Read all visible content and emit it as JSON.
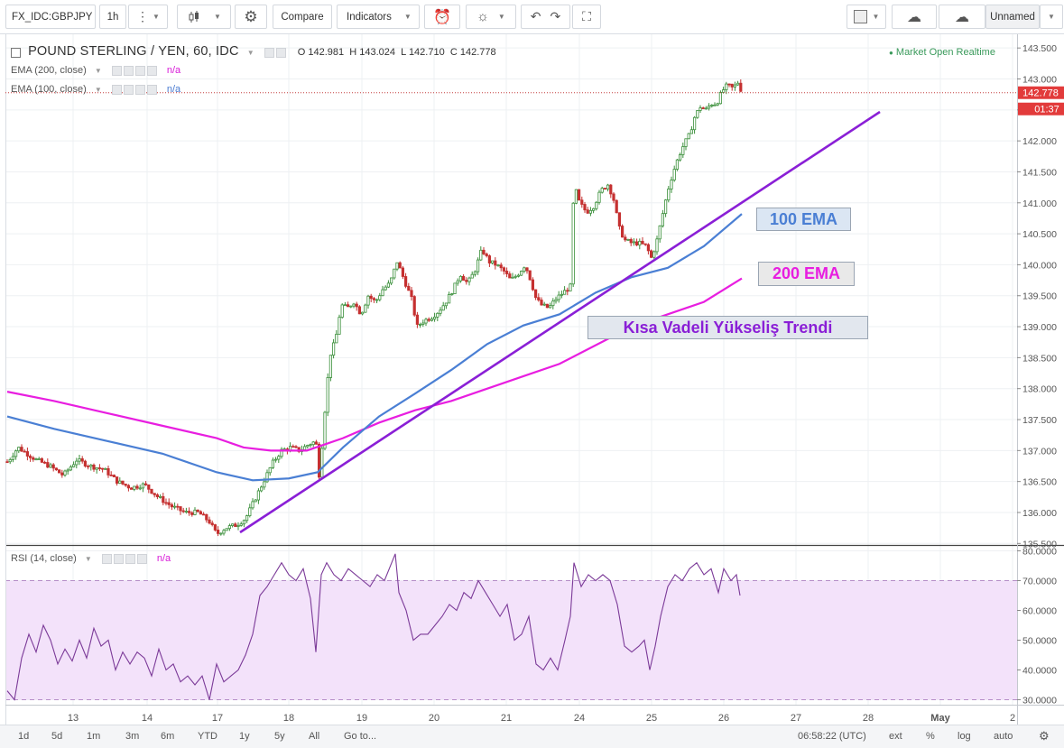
{
  "toolbar": {
    "symbol": "FX_IDC:GBPJPY",
    "interval": "1h",
    "compare_label": "Compare",
    "indicators_label": "Indicators",
    "layout_name": "Unnamed",
    "icons": [
      "more-icon",
      "candles-icon",
      "settings-icon",
      "alert-icon",
      "bulb-icon",
      "undo-icon",
      "redo-icon",
      "fullscreen-icon",
      "square-icon",
      "cloud-download-icon",
      "cloud-upload-icon"
    ]
  },
  "legend": {
    "title": "POUND STERLING / YEN, 60, IDC",
    "ohlc": {
      "o_label": "O",
      "o": "142.981",
      "h_label": "H",
      "h": "143.024",
      "l_label": "L",
      "l": "142.710",
      "c_label": "C",
      "c": "142.778"
    },
    "ema200": "EMA (200, close)",
    "ema100": "EMA (100, close)",
    "na": "n/a",
    "market_status": "Market Open Realtime"
  },
  "price_badges": {
    "last": "142.778",
    "countdown": "01:37"
  },
  "annotations": {
    "ema100": "100 EMA",
    "ema200": "200 EMA",
    "trend": "Kısa Vadeli Yükseliş Trendi"
  },
  "colors": {
    "ema100": "#4a7fd4",
    "ema200": "#e81ee0",
    "trend": "#8a1fd6",
    "up": "#3a8f3a",
    "down": "#c53030",
    "rsi": "#7b3a98",
    "rsi_band": "#f3e2fa",
    "badge": "#e23b3b"
  },
  "rsi": {
    "label": "RSI (14, close)",
    "na": "n/a"
  },
  "bottom": {
    "ranges": [
      "1d",
      "5d",
      "1m",
      "3m",
      "6m",
      "YTD",
      "1y",
      "5y",
      "All"
    ],
    "goto": "Go to...",
    "time": "06:58:22 (UTC)",
    "options": [
      "ext",
      "%",
      "log",
      "auto"
    ]
  },
  "chart_data": [
    {
      "type": "candlestick",
      "x_ticks": [
        "13",
        "14",
        "17",
        "18",
        "19",
        "20",
        "21",
        "24",
        "25",
        "26",
        "27",
        "28",
        "May",
        "2"
      ],
      "y_ticks": [
        "135.500",
        "136.000",
        "136.500",
        "137.000",
        "137.500",
        "138.000",
        "138.500",
        "139.000",
        "139.500",
        "140.000",
        "140.500",
        "141.000",
        "141.500",
        "142.000",
        "142.500",
        "143.000",
        "143.500"
      ],
      "ylim": [
        135.4,
        143.6
      ],
      "price_path": [
        [
          0,
          136.7
        ],
        [
          10,
          136.85
        ],
        [
          20,
          137.05
        ],
        [
          30,
          136.95
        ],
        [
          40,
          136.85
        ],
        [
          55,
          136.75
        ],
        [
          70,
          136.6
        ],
        [
          85,
          136.85
        ],
        [
          100,
          136.75
        ],
        [
          115,
          136.7
        ],
        [
          130,
          136.5
        ],
        [
          145,
          136.4
        ],
        [
          160,
          136.45
        ],
        [
          175,
          136.25
        ],
        [
          190,
          136.1
        ],
        [
          205,
          136.0
        ],
        [
          220,
          136.0
        ],
        [
          232,
          135.85
        ],
        [
          240,
          135.65
        ],
        [
          250,
          135.75
        ],
        [
          262,
          135.8
        ],
        [
          272,
          135.9
        ],
        [
          282,
          136.2
        ],
        [
          292,
          136.5
        ],
        [
          302,
          136.8
        ],
        [
          312,
          137.0
        ],
        [
          322,
          137.05
        ],
        [
          332,
          137.0
        ],
        [
          342,
          137.1
        ],
        [
          350,
          137.15
        ],
        [
          354,
          136.55
        ],
        [
          358,
          137.3
        ],
        [
          362,
          138.0
        ],
        [
          366,
          138.55
        ],
        [
          372,
          138.8
        ],
        [
          378,
          139.35
        ],
        [
          385,
          139.3
        ],
        [
          392,
          139.4
        ],
        [
          400,
          139.2
        ],
        [
          408,
          139.5
        ],
        [
          416,
          139.4
        ],
        [
          424,
          139.6
        ],
        [
          432,
          139.7
        ],
        [
          440,
          140.05
        ],
        [
          448,
          139.75
        ],
        [
          456,
          139.45
        ],
        [
          462,
          139.0
        ],
        [
          470,
          139.1
        ],
        [
          478,
          139.15
        ],
        [
          486,
          139.25
        ],
        [
          494,
          139.4
        ],
        [
          502,
          139.6
        ],
        [
          510,
          139.85
        ],
        [
          518,
          139.7
        ],
        [
          526,
          139.9
        ],
        [
          534,
          140.25
        ],
        [
          542,
          140.05
        ],
        [
          550,
          140.0
        ],
        [
          558,
          139.9
        ],
        [
          566,
          139.75
        ],
        [
          574,
          139.85
        ],
        [
          582,
          140.0
        ],
        [
          588,
          139.75
        ],
        [
          594,
          139.45
        ],
        [
          600,
          139.35
        ],
        [
          608,
          139.3
        ],
        [
          616,
          139.45
        ],
        [
          624,
          139.55
        ],
        [
          632,
          139.65
        ],
        [
          636,
          141.3
        ],
        [
          642,
          141.0
        ],
        [
          650,
          140.85
        ],
        [
          658,
          140.95
        ],
        [
          666,
          141.2
        ],
        [
          674,
          141.3
        ],
        [
          680,
          141.05
        ],
        [
          686,
          140.6
        ],
        [
          692,
          140.4
        ],
        [
          700,
          140.35
        ],
        [
          708,
          140.35
        ],
        [
          716,
          140.3
        ],
        [
          722,
          140.1
        ],
        [
          728,
          140.4
        ],
        [
          734,
          140.8
        ],
        [
          740,
          141.2
        ],
        [
          746,
          141.5
        ],
        [
          752,
          141.75
        ],
        [
          758,
          141.95
        ],
        [
          764,
          142.1
        ],
        [
          770,
          142.4
        ],
        [
          776,
          142.55
        ],
        [
          782,
          142.5
        ],
        [
          788,
          142.6
        ],
        [
          794,
          142.6
        ],
        [
          800,
          142.8
        ],
        [
          806,
          142.9
        ],
        [
          812,
          142.85
        ],
        [
          818,
          142.95
        ],
        [
          822,
          142.78
        ]
      ],
      "series": [
        {
          "name": "EMA (200, close)",
          "points": [
            [
              8,
              137.95
            ],
            [
              60,
              137.8
            ],
            [
              120,
              137.6
            ],
            [
              180,
              137.4
            ],
            [
              240,
              137.2
            ],
            [
              270,
              137.05
            ],
            [
              300,
              137.0
            ],
            [
              340,
              137.0
            ],
            [
              380,
              137.2
            ],
            [
              420,
              137.45
            ],
            [
              460,
              137.65
            ],
            [
              500,
              137.8
            ],
            [
              540,
              138.0
            ],
            [
              580,
              138.2
            ],
            [
              620,
              138.4
            ],
            [
              660,
              138.7
            ],
            [
              700,
              139.0
            ],
            [
              740,
              139.2
            ],
            [
              780,
              139.4
            ],
            [
              822,
              139.78
            ]
          ]
        },
        {
          "name": "EMA (100, close)",
          "points": [
            [
              8,
              137.55
            ],
            [
              60,
              137.35
            ],
            [
              120,
              137.15
            ],
            [
              180,
              136.95
            ],
            [
              240,
              136.65
            ],
            [
              280,
              136.52
            ],
            [
              320,
              136.55
            ],
            [
              352,
              136.65
            ],
            [
              380,
              137.05
            ],
            [
              420,
              137.55
            ],
            [
              460,
              137.92
            ],
            [
              500,
              138.3
            ],
            [
              540,
              138.72
            ],
            [
              580,
              139.02
            ],
            [
              620,
              139.2
            ],
            [
              660,
              139.55
            ],
            [
              700,
              139.8
            ],
            [
              740,
              139.95
            ],
            [
              780,
              140.3
            ],
            [
              822,
              140.82
            ]
          ]
        }
      ]
    },
    {
      "type": "line",
      "ylim": [
        28,
        81
      ],
      "y_ticks": [
        "30.0000",
        "40.0000",
        "50.0000",
        "60.0000",
        "70.0000",
        "80.0000"
      ],
      "band": [
        30,
        70
      ],
      "series": [
        {
          "name": "RSI (14, close)",
          "points": [
            [
              8,
              33
            ],
            [
              16,
              30
            ],
            [
              24,
              44
            ],
            [
              32,
              52
            ],
            [
              40,
              46
            ],
            [
              48,
              55
            ],
            [
              56,
              50
            ],
            [
              64,
              42
            ],
            [
              72,
              47
            ],
            [
              80,
              43
            ],
            [
              88,
              50
            ],
            [
              96,
              44
            ],
            [
              104,
              54
            ],
            [
              112,
              48
            ],
            [
              120,
              50
            ],
            [
              128,
              40
            ],
            [
              136,
              46
            ],
            [
              144,
              42
            ],
            [
              152,
              46
            ],
            [
              160,
              44
            ],
            [
              168,
              38
            ],
            [
              176,
              47
            ],
            [
              184,
              40
            ],
            [
              192,
              42
            ],
            [
              200,
              36
            ],
            [
              208,
              38
            ],
            [
              216,
              35
            ],
            [
              224,
              38
            ],
            [
              232,
              30
            ],
            [
              240,
              42
            ],
            [
              248,
              36
            ],
            [
              256,
              38
            ],
            [
              264,
              40
            ],
            [
              272,
              45
            ],
            [
              280,
              52
            ],
            [
              288,
              65
            ],
            [
              296,
              68
            ],
            [
              304,
              72
            ],
            [
              312,
              76
            ],
            [
              320,
              72
            ],
            [
              328,
              70
            ],
            [
              336,
              74
            ],
            [
              344,
              64
            ],
            [
              350,
              46
            ],
            [
              356,
              72
            ],
            [
              362,
              76
            ],
            [
              370,
              72
            ],
            [
              378,
              70
            ],
            [
              386,
              74
            ],
            [
              394,
              72
            ],
            [
              402,
              70
            ],
            [
              410,
              68
            ],
            [
              418,
              72
            ],
            [
              426,
              70
            ],
            [
              434,
              76
            ],
            [
              438,
              79
            ],
            [
              442,
              66
            ],
            [
              450,
              60
            ],
            [
              458,
              50
            ],
            [
              466,
              52
            ],
            [
              474,
              52
            ],
            [
              482,
              55
            ],
            [
              490,
              58
            ],
            [
              498,
              62
            ],
            [
              506,
              60
            ],
            [
              514,
              66
            ],
            [
              522,
              64
            ],
            [
              530,
              70
            ],
            [
              538,
              66
            ],
            [
              546,
              62
            ],
            [
              554,
              58
            ],
            [
              562,
              62
            ],
            [
              570,
              50
            ],
            [
              578,
              52
            ],
            [
              586,
              58
            ],
            [
              594,
              42
            ],
            [
              602,
              40
            ],
            [
              610,
              44
            ],
            [
              618,
              40
            ],
            [
              626,
              50
            ],
            [
              632,
              58
            ],
            [
              636,
              76
            ],
            [
              644,
              68
            ],
            [
              652,
              72
            ],
            [
              660,
              70
            ],
            [
              668,
              72
            ],
            [
              676,
              70
            ],
            [
              684,
              62
            ],
            [
              692,
              48
            ],
            [
              700,
              46
            ],
            [
              708,
              48
            ],
            [
              714,
              50
            ],
            [
              720,
              40
            ],
            [
              726,
              48
            ],
            [
              732,
              58
            ],
            [
              740,
              68
            ],
            [
              748,
              72
            ],
            [
              756,
              70
            ],
            [
              764,
              74
            ],
            [
              772,
              76
            ],
            [
              780,
              72
            ],
            [
              788,
              74
            ],
            [
              796,
              66
            ],
            [
              802,
              74
            ],
            [
              810,
              70
            ],
            [
              816,
              72
            ],
            [
              820,
              65
            ]
          ]
        }
      ]
    }
  ]
}
